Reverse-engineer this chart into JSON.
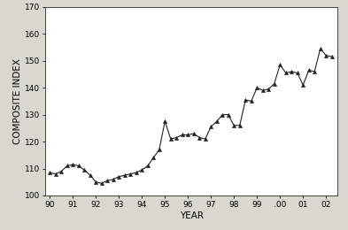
{
  "x": [
    1990.0,
    1990.25,
    1990.5,
    1990.75,
    1991.0,
    1991.25,
    1991.5,
    1991.75,
    1992.0,
    1992.25,
    1992.5,
    1992.75,
    1993.0,
    1993.25,
    1993.5,
    1993.75,
    1994.0,
    1994.25,
    1994.5,
    1994.75,
    1995.0,
    1995.25,
    1995.5,
    1995.75,
    1996.0,
    1996.25,
    1996.5,
    1996.75,
    1997.0,
    1997.25,
    1997.5,
    1997.75,
    1998.0,
    1998.25,
    1998.5,
    1998.75,
    1999.0,
    1999.25,
    1999.5,
    1999.75,
    2000.0,
    2000.25,
    2000.5,
    2000.75,
    2001.0,
    2001.25,
    2001.5,
    2001.75,
    2002.0,
    2002.25
  ],
  "y": [
    108.5,
    108.0,
    109.0,
    111.0,
    111.5,
    111.0,
    109.5,
    107.5,
    105.0,
    104.5,
    105.5,
    106.0,
    107.0,
    107.5,
    108.0,
    108.5,
    109.5,
    111.0,
    114.0,
    117.0,
    127.5,
    121.0,
    121.5,
    122.5,
    122.5,
    123.0,
    121.5,
    121.0,
    125.5,
    127.5,
    130.0,
    130.0,
    126.0,
    126.0,
    135.5,
    135.0,
    140.0,
    139.0,
    139.5,
    141.5,
    148.5,
    145.5,
    146.0,
    145.5,
    141.0,
    146.5,
    146.0,
    154.5,
    152.0,
    151.5
  ],
  "xlim": [
    1989.8,
    2002.5
  ],
  "ylim": [
    100,
    170
  ],
  "yticks": [
    100,
    110,
    120,
    130,
    140,
    150,
    160,
    170
  ],
  "xtick_positions": [
    1990,
    1991,
    1992,
    1993,
    1994,
    1995,
    1996,
    1997,
    1998,
    1999,
    2000,
    2001,
    2002
  ],
  "xtick_labels": [
    "90",
    "91",
    "92",
    "93",
    "94",
    "95",
    "96",
    "97",
    "98",
    "99",
    ".00",
    "01",
    "02"
  ],
  "xlabel": "YEAR",
  "ylabel": "COMPOSITE INDEX",
  "line_color": "#222222",
  "marker": "^",
  "marker_size": 3.0,
  "marker_color": "#222222",
  "linewidth": 0.8,
  "plot_bg_color": "#ffffff",
  "fig_bg_color": "#d8d8d0",
  "label_fontsize": 7.5,
  "tick_fontsize": 6.5
}
